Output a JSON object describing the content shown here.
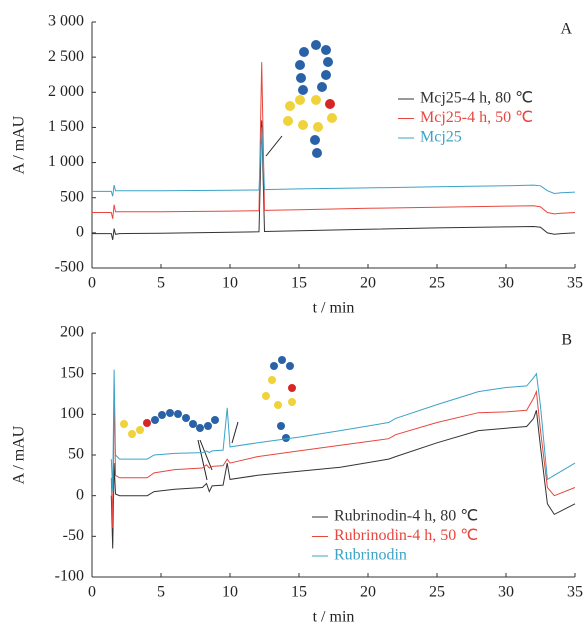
{
  "chart_data": [
    {
      "type": "line",
      "panel": "A",
      "xlabel": "t / min",
      "ylabel": "A / mAU",
      "legend": "center right",
      "xlim": [
        0,
        35
      ],
      "xticks": [
        0,
        5,
        10,
        15,
        20,
        25,
        30,
        35
      ],
      "ylim": [
        -500,
        3000
      ],
      "yticks": [
        -500,
        0,
        500,
        {
          "value": 1000,
          "label": "1 000"
        },
        {
          "value": 1500,
          "label": "1 500"
        },
        {
          "value": 2000,
          "label": "2 000"
        },
        {
          "value": 2500,
          "label": "2 500"
        },
        {
          "value": 3000,
          "label": "3 000"
        }
      ],
      "x": [
        0,
        1.4,
        1.5,
        1.6,
        1.7,
        2,
        5,
        10,
        12.1,
        12.3,
        12.5,
        15,
        20,
        25,
        30,
        32,
        32.5,
        33,
        33.5,
        34,
        35
      ],
      "series": [
        {
          "name": "Mcj25-4 h, 80 ℃",
          "color": "#333333",
          "values": [
            -10,
            -10,
            -100,
            60,
            -20,
            -10,
            -5,
            10,
            15,
            1600,
            20,
            30,
            50,
            70,
            85,
            90,
            80,
            0,
            -20,
            -10,
            0
          ]
        },
        {
          "name": "Mcj25-4 h, 50 ℃",
          "color": "#e8473f",
          "values": [
            290,
            290,
            200,
            400,
            300,
            300,
            300,
            310,
            315,
            2430,
            320,
            330,
            350,
            365,
            380,
            385,
            370,
            290,
            270,
            280,
            290
          ]
        },
        {
          "name": "Mcj25",
          "color": "#3ba3c8",
          "values": [
            590,
            590,
            520,
            680,
            600,
            600,
            600,
            605,
            610,
            1500,
            615,
            625,
            640,
            655,
            670,
            680,
            670,
            600,
            560,
            570,
            580
          ]
        }
      ]
    },
    {
      "type": "line",
      "panel": "B",
      "xlabel": "t / min",
      "ylabel": "A / mAU",
      "legend": "lower right",
      "xlim": [
        0,
        35
      ],
      "xticks": [
        0,
        5,
        10,
        15,
        20,
        25,
        30,
        35
      ],
      "ylim": [
        -100,
        200
      ],
      "yticks": [
        -100,
        -50,
        0,
        50,
        100,
        150,
        200
      ],
      "x": [
        1.4,
        1.5,
        1.6,
        1.7,
        2,
        4,
        4.5,
        6,
        8,
        8.3,
        8.5,
        8.7,
        9.5,
        9.8,
        10,
        12,
        15,
        18,
        21.5,
        22,
        25,
        28,
        30,
        31.5,
        32,
        32.2,
        32.5,
        33,
        33.5,
        35
      ],
      "series": [
        {
          "name": "Rubrinodin-4 h, 80 ℃",
          "color": "#333333",
          "values": [
            0,
            -65,
            40,
            2,
            0,
            0,
            5,
            8,
            10,
            15,
            5,
            12,
            13,
            40,
            20,
            25,
            30,
            35,
            45,
            48,
            65,
            80,
            83,
            85,
            95,
            105,
            60,
            -10,
            -23,
            -10
          ]
        },
        {
          "name": "Rubrinodin-4 h, 50 ℃",
          "color": "#e8473f",
          "values": [
            22,
            -40,
            130,
            25,
            22,
            22,
            28,
            32,
            34,
            38,
            34,
            36,
            37,
            45,
            40,
            48,
            55,
            62,
            70,
            75,
            90,
            102,
            103,
            105,
            120,
            128,
            80,
            10,
            0,
            10
          ]
        },
        {
          "name": "Rubrinodin",
          "color": "#3ba3c8",
          "values": [
            45,
            5,
            155,
            50,
            45,
            45,
            50,
            52,
            53,
            55,
            53,
            55,
            56,
            108,
            60,
            65,
            72,
            80,
            90,
            95,
            112,
            128,
            133,
            135,
            145,
            150,
            110,
            20,
            25,
            40
          ]
        }
      ]
    }
  ]
}
